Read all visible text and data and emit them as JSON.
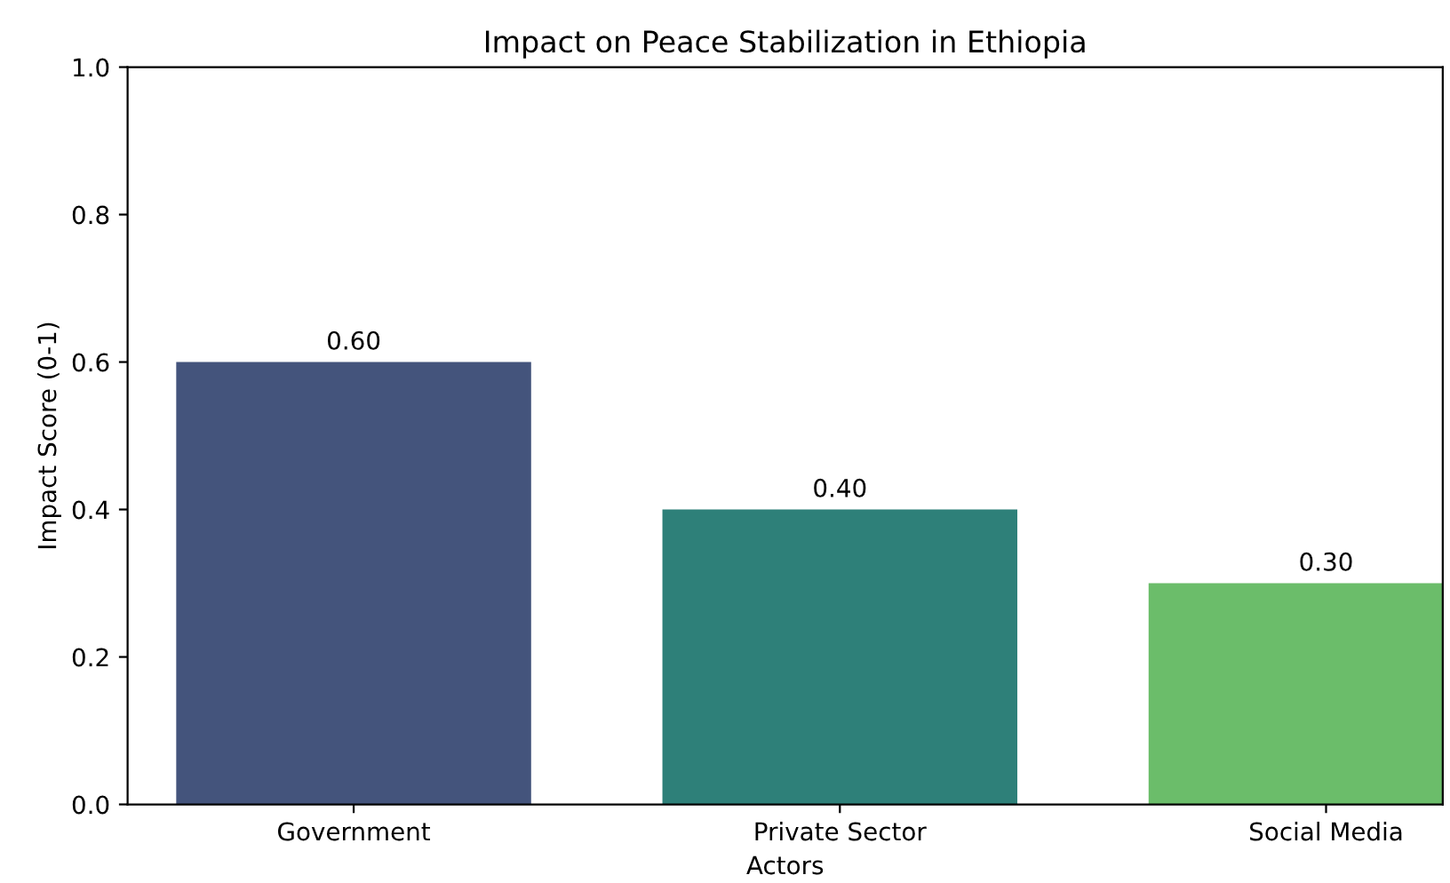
{
  "chart_data": {
    "type": "bar",
    "title": "Impact on Peace Stabilization in Ethiopia",
    "xlabel": "Actors",
    "ylabel": "Impact Score (0-1)",
    "categories": [
      "Government",
      "Private Sector",
      "Social Media"
    ],
    "values": [
      0.6,
      0.4,
      0.3
    ],
    "colors": [
      "#44547c",
      "#2e8079",
      "#6bbd6a"
    ],
    "value_labels": [
      "0.60",
      "0.40",
      "0.30"
    ],
    "ylim": [
      0.0,
      1.0
    ],
    "yticks": [
      {
        "value": 0,
        "label": "0.0"
      },
      0.2,
      0.4,
      0.6,
      0.8,
      {
        "value": 1,
        "label": "1.0"
      }
    ],
    "grid": false,
    "legend": false
  }
}
